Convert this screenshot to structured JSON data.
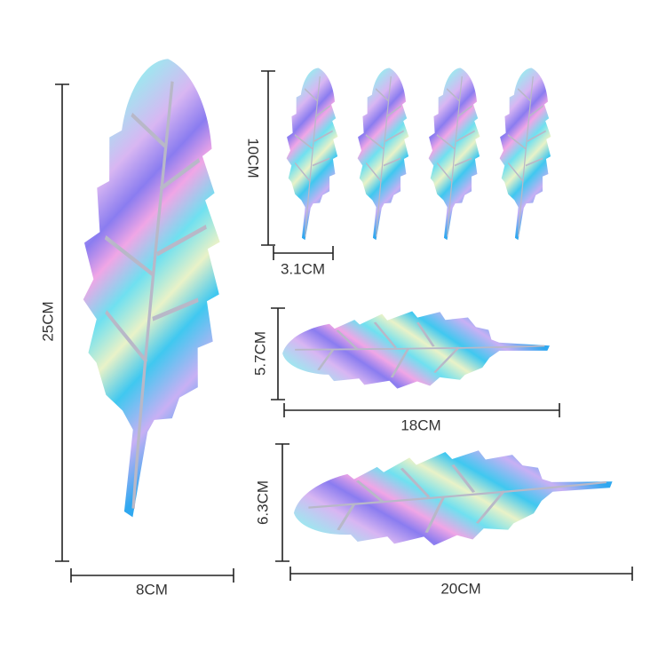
{
  "dimensions": {
    "large_height": "25CM",
    "large_width": "8CM",
    "small_height": "10CM",
    "small_width": "3.1CM",
    "medium_height": "5.7CM",
    "medium_width": "18CM",
    "long_height": "6.3CM",
    "long_width": "20CM"
  }
}
